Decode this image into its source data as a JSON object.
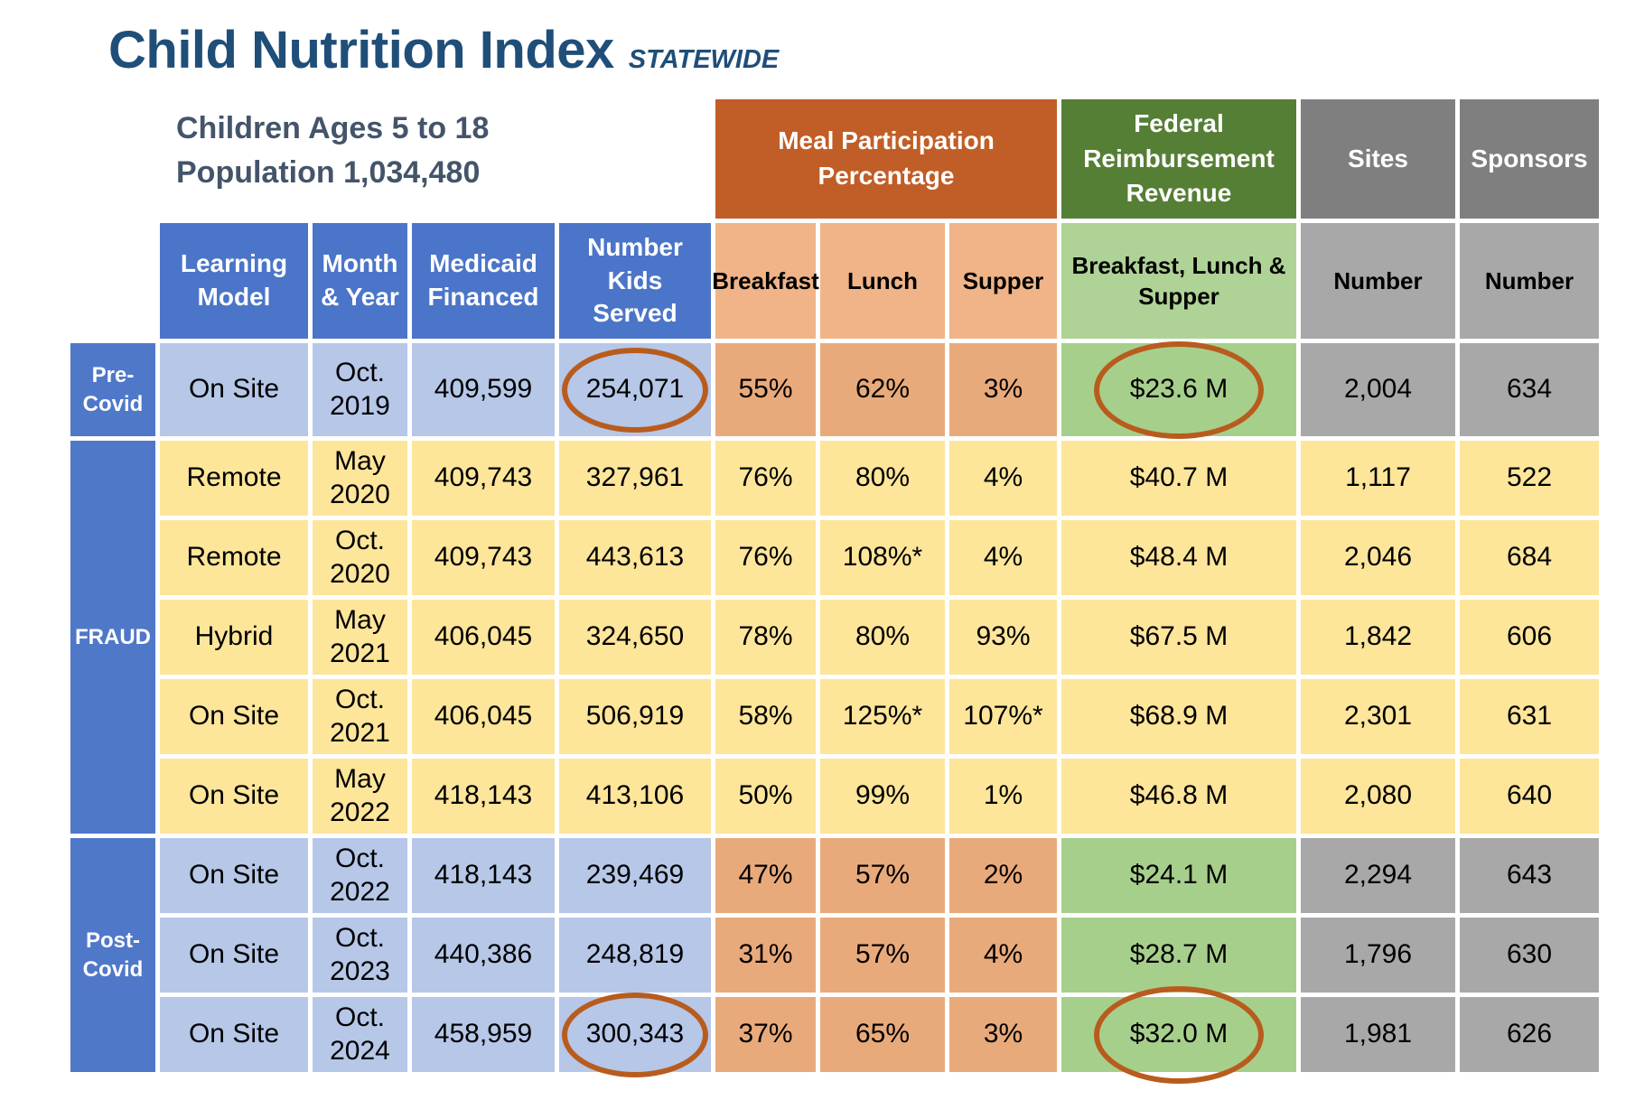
{
  "title": {
    "main": "Child Nutrition Index",
    "tag": "STATEWIDE"
  },
  "subtitle": {
    "line1": "Children Ages 5 to 18",
    "line2": "Population 1,034,480"
  },
  "group_headers": {
    "meal": "Meal Participation\nPercentage",
    "revenue": "Federal\nReimbursement\nRevenue",
    "sites": "Sites",
    "sponsors": "Sponsors"
  },
  "column_headers": {
    "learning_model": "Learning\nModel",
    "month_year": "Month\n& Year",
    "medicaid": "Medicaid\nFinanced",
    "kids": "Number\nKids\nServed",
    "breakfast": "Breakfast",
    "lunch": "Lunch",
    "supper": "Supper",
    "bls": "Breakfast, Lunch &\nSupper",
    "sites": "Number",
    "sponsors": "Number"
  },
  "row_groups": {
    "pre": "Pre-\nCovid",
    "fraud": "FRAUD",
    "post": "Post-\nCovid"
  },
  "rows": [
    {
      "group": "pre",
      "learning_model": "On Site",
      "month": "Oct.",
      "year": "2019",
      "medicaid": "409,599",
      "kids": "254,071",
      "breakfast": "55%",
      "lunch": "62%",
      "supper": "3%",
      "revenue": "$23.6 M",
      "sites": "2,004",
      "sponsors": "634",
      "circled": [
        "kids",
        "revenue"
      ]
    },
    {
      "group": "fraud",
      "learning_model": "Remote",
      "month": "May",
      "year": "2020",
      "medicaid": "409,743",
      "kids": "327,961",
      "breakfast": "76%",
      "lunch": "80%",
      "supper": "4%",
      "revenue": "$40.7 M",
      "sites": "1,117",
      "sponsors": "522",
      "circled": []
    },
    {
      "group": "fraud",
      "learning_model": "Remote",
      "month": "Oct.",
      "year": "2020",
      "medicaid": "409,743",
      "kids": "443,613",
      "breakfast": "76%",
      "lunch": "108%*",
      "supper": "4%",
      "revenue": "$48.4 M",
      "sites": "2,046",
      "sponsors": "684",
      "circled": []
    },
    {
      "group": "fraud",
      "learning_model": "Hybrid",
      "month": "May",
      "year": "2021",
      "medicaid": "406,045",
      "kids": "324,650",
      "breakfast": "78%",
      "lunch": "80%",
      "supper": "93%",
      "revenue": "$67.5 M",
      "sites": "1,842",
      "sponsors": "606",
      "circled": []
    },
    {
      "group": "fraud",
      "learning_model": "On Site",
      "month": "Oct.",
      "year": "2021",
      "medicaid": "406,045",
      "kids": "506,919",
      "breakfast": "58%",
      "lunch": "125%*",
      "supper": "107%*",
      "revenue": "$68.9 M",
      "sites": "2,301",
      "sponsors": "631",
      "circled": []
    },
    {
      "group": "fraud",
      "learning_model": "On Site",
      "month": "May",
      "year": "2022",
      "medicaid": "418,143",
      "kids": "413,106",
      "breakfast": "50%",
      "lunch": "99%",
      "supper": "1%",
      "revenue": "$46.8 M",
      "sites": "2,080",
      "sponsors": "640",
      "circled": []
    },
    {
      "group": "post",
      "learning_model": "On Site",
      "month": "Oct.",
      "year": "2022",
      "medicaid": "418,143",
      "kids": "239,469",
      "breakfast": "47%",
      "lunch": "57%",
      "supper": "2%",
      "revenue": "$24.1 M",
      "sites": "2,294",
      "sponsors": "643",
      "circled": []
    },
    {
      "group": "post",
      "learning_model": "On Site",
      "month": "Oct.",
      "year": "2023",
      "medicaid": "440,386",
      "kids": "248,819",
      "breakfast": "31%",
      "lunch": "57%",
      "supper": "4%",
      "revenue": "$28.7 M",
      "sites": "1,796",
      "sponsors": "630",
      "circled": []
    },
    {
      "group": "post",
      "learning_model": "On Site",
      "month": "Oct.",
      "year": "2024",
      "medicaid": "458,959",
      "kids": "300,343",
      "breakfast": "37%",
      "lunch": "65%",
      "supper": "3%",
      "revenue": "$32.0 M",
      "sites": "1,981",
      "sponsors": "626",
      "circled": [
        "kids",
        "revenue"
      ]
    }
  ],
  "colors": {
    "title_blue": "#1F4E79",
    "subtitle_blue": "#44546A",
    "group_orange": "#C15D26",
    "group_green": "#567F36",
    "group_gray": "#7F7F7F",
    "head_blue": "#4B75C8",
    "side_blue": "#5078C9",
    "cell_blue": "#B6C7E8",
    "head_meal": "#F0B488",
    "cell_meal": "#E9AA7B",
    "head_revenue": "#AFD296",
    "cell_revenue": "#A7CF8C",
    "head_count": "#A8A8A8",
    "cell_count": "#A8A8A8",
    "cell_yellow": "#FDE59A",
    "ellipse_orange": "#B85C1E"
  }
}
